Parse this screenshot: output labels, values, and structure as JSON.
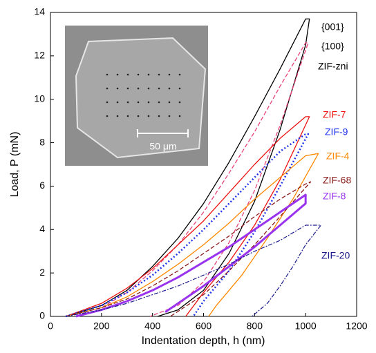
{
  "chart_data": {
    "type": "line",
    "xlabel": "Indentation depth, h (nm)",
    "ylabel": "Load, P (mN)",
    "xlim": [
      0,
      1200
    ],
    "xticks": [
      0,
      200,
      400,
      600,
      800,
      1000,
      1200
    ],
    "ylim": [
      0,
      14
    ],
    "yticks": [
      0,
      2,
      4,
      6,
      8,
      10,
      12,
      14
    ],
    "annotation": "ZIF-zni",
    "inset_scale_label": "50 μm",
    "series": [
      {
        "name": "{001}",
        "color": "#000000",
        "style": "solid",
        "x": [
          60,
          200,
          300,
          400,
          500,
          600,
          700,
          800,
          900,
          1000,
          1015,
          1000,
          900,
          800,
          700,
          600,
          500,
          420
        ],
        "values": [
          0,
          0.5,
          1.2,
          2.3,
          3.6,
          5.2,
          7.1,
          9.2,
          11.4,
          13.7,
          13.7,
          12.5,
          8.6,
          5.3,
          2.9,
          1.2,
          0.3,
          0
        ]
      },
      {
        "name": "{100}",
        "color": "#e8407a",
        "style": "dashed",
        "x": [
          60,
          200,
          300,
          400,
          500,
          600,
          700,
          800,
          900,
          1000,
          1010,
          900,
          800,
          700,
          600,
          500,
          390
        ],
        "values": [
          0,
          0.4,
          1.1,
          2.1,
          3.3,
          4.8,
          6.6,
          8.5,
          10.6,
          12.6,
          12.6,
          8.8,
          5.8,
          3.4,
          1.6,
          0.5,
          0
        ]
      },
      {
        "name": "ZIF-7",
        "color": "#ee1111",
        "style": "solid",
        "x": [
          60,
          200,
          300,
          400,
          500,
          600,
          700,
          800,
          900,
          1000,
          1015,
          900,
          800,
          700,
          600,
          530
        ],
        "values": [
          0,
          0.6,
          1.3,
          2.2,
          3.3,
          4.4,
          5.7,
          7.0,
          8.2,
          9.2,
          9.2,
          6.3,
          4.2,
          2.5,
          1.1,
          0
        ]
      },
      {
        "name": "ZIF-9",
        "color": "#2233ee",
        "style": "dotted",
        "x": [
          60,
          200,
          300,
          400,
          500,
          600,
          700,
          800,
          900,
          1000,
          1010,
          900,
          800,
          700,
          600,
          560
        ],
        "values": [
          0,
          0.5,
          1.1,
          1.9,
          2.9,
          4.0,
          5.2,
          6.4,
          7.6,
          8.4,
          8.4,
          6.0,
          3.9,
          2.1,
          0.7,
          0
        ]
      },
      {
        "name": "ZIF-4",
        "color": "#ff8800",
        "style": "solid",
        "x": [
          60,
          200,
          300,
          400,
          500,
          600,
          700,
          800,
          900,
          1000,
          1050,
          950,
          850,
          750,
          650,
          620
        ],
        "values": [
          0,
          0.4,
          0.9,
          1.6,
          2.4,
          3.3,
          4.3,
          5.4,
          6.4,
          7.4,
          7.5,
          5.4,
          3.6,
          1.9,
          0.5,
          0
        ]
      },
      {
        "name": "ZIF-68",
        "color": "#8b1a1a",
        "style": "dashed",
        "x": [
          60,
          200,
          300,
          400,
          500,
          600,
          700,
          800,
          900,
          1000,
          1020,
          900,
          800,
          700,
          600,
          470
        ],
        "values": [
          0,
          0.4,
          0.8,
          1.4,
          2.1,
          2.9,
          3.7,
          4.6,
          5.4,
          6.1,
          6.2,
          4.6,
          3.3,
          2.1,
          1.0,
          0
        ]
      },
      {
        "name": "ZIF-8",
        "color": "#9933ee",
        "style": "thick",
        "x": [
          100,
          200,
          300,
          400,
          500,
          600,
          700,
          800,
          900,
          1000,
          1000,
          900,
          800,
          700,
          600,
          500,
          450
        ],
        "values": [
          0,
          0.3,
          0.7,
          1.2,
          1.8,
          2.5,
          3.2,
          4.0,
          4.8,
          5.6,
          5.2,
          4.2,
          3.2,
          2.3,
          1.4,
          0.6,
          0.2
        ]
      },
      {
        "name": "ZIF-20",
        "color": "#1a1a8c",
        "style": "dashdot",
        "x": [
          60,
          200,
          300,
          400,
          500,
          600,
          700,
          800,
          900,
          1000,
          1060,
          1000,
          950,
          900,
          850,
          790
        ],
        "values": [
          0,
          0.3,
          0.6,
          1.0,
          1.4,
          1.9,
          2.4,
          3.0,
          3.5,
          4.2,
          4.2,
          3.3,
          2.3,
          1.4,
          0.6,
          0
        ]
      }
    ]
  }
}
